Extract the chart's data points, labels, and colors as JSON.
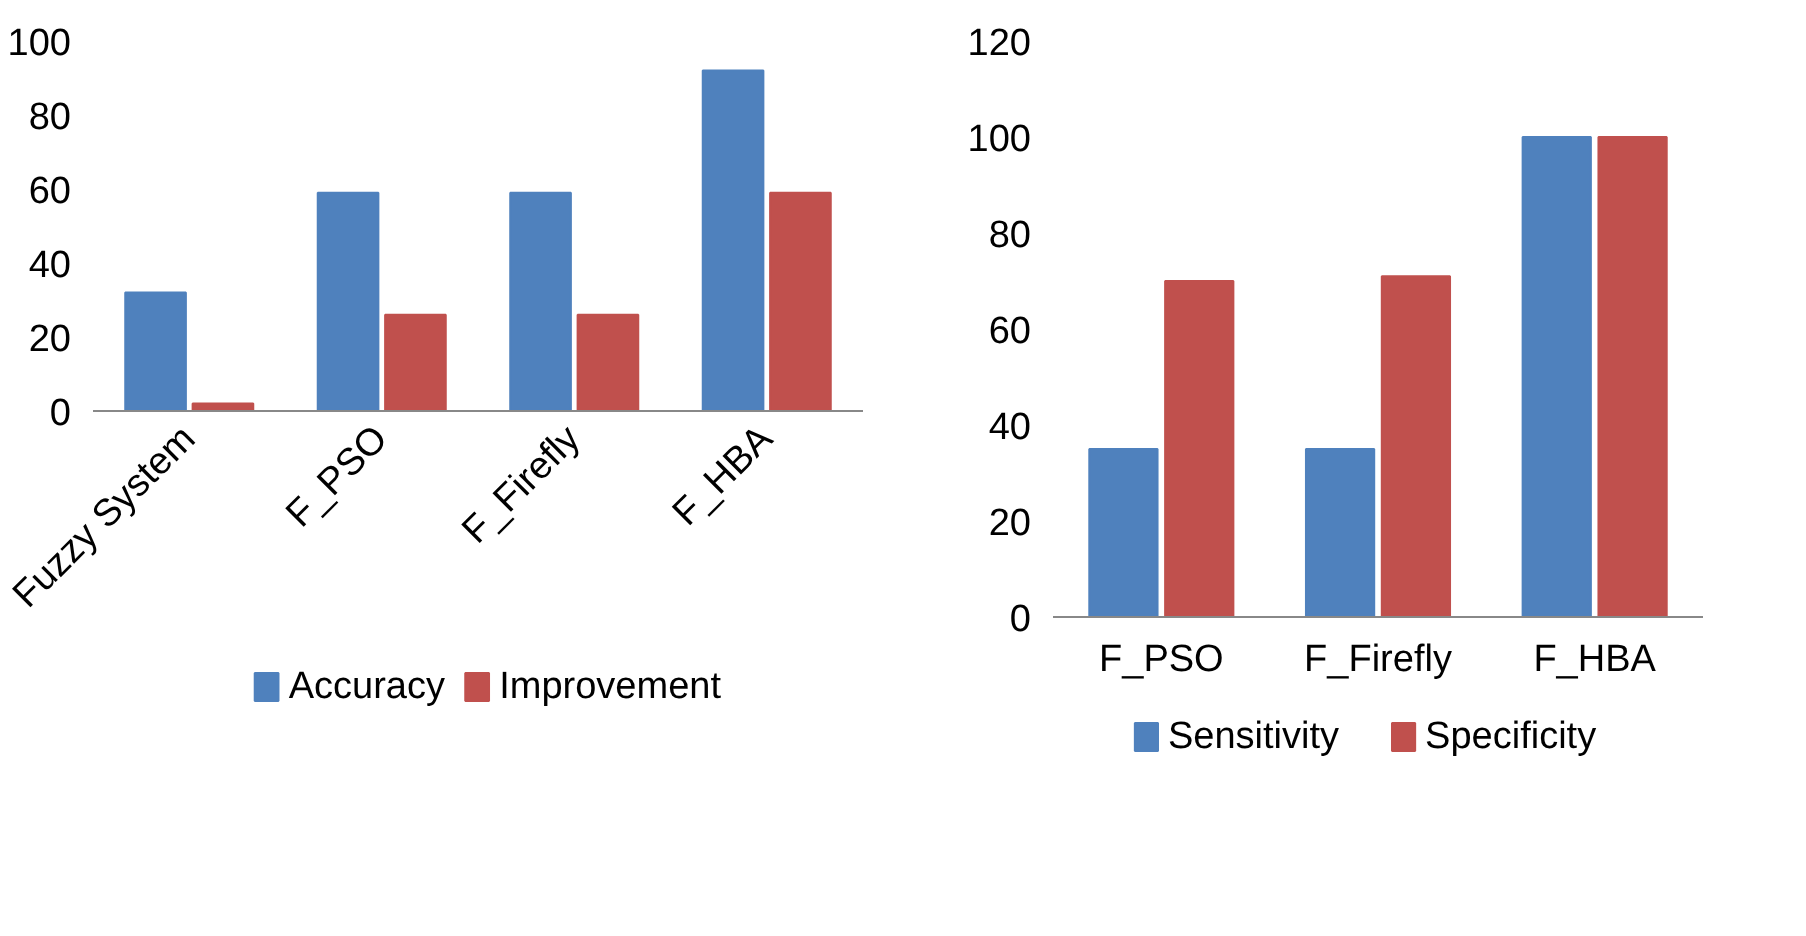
{
  "chart_data": [
    {
      "type": "bar",
      "categories": [
        "Fuzzy System",
        "F_PSO",
        "F_Firefly",
        "F_HBA"
      ],
      "series": [
        {
          "name": "Accuracy",
          "color": "#4f81bd",
          "values": [
            32,
            59,
            59,
            92
          ]
        },
        {
          "name": "Improvement",
          "color": "#c0504d",
          "values": [
            2,
            26,
            26,
            59
          ]
        }
      ],
      "ylim": [
        0,
        100
      ],
      "yticks": [
        0,
        20,
        40,
        60,
        80,
        100
      ],
      "grid": false,
      "legend": "bottom"
    },
    {
      "type": "bar",
      "categories": [
        "F_PSO",
        "F_Firefly",
        "F_HBA"
      ],
      "series": [
        {
          "name": "Sensitivity",
          "color": "#4f81bd",
          "values": [
            35,
            35,
            100
          ]
        },
        {
          "name": "Specificity",
          "color": "#c0504d",
          "values": [
            70,
            71,
            100
          ]
        }
      ],
      "ylim": [
        0,
        120
      ],
      "yticks": [
        0,
        20,
        40,
        60,
        80,
        100,
        120
      ],
      "grid": false,
      "legend": "bottom"
    }
  ]
}
